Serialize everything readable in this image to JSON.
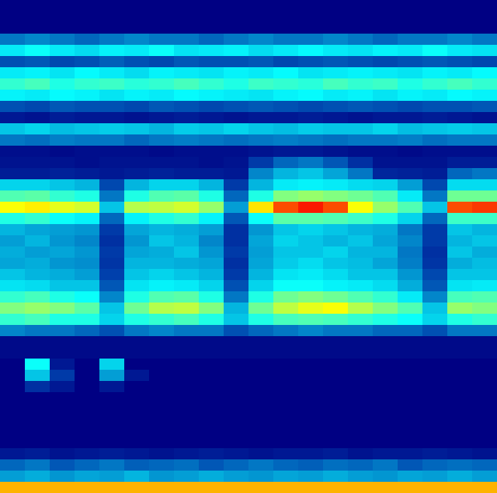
{
  "chart_data": {
    "type": "heatmap",
    "tick_labels": false,
    "zlim": [
      0,
      1
    ],
    "cells": [
      [
        0,
        0,
        0,
        0,
        0,
        0,
        0,
        0,
        0,
        0,
        0,
        0,
        0,
        0,
        0,
        0,
        0,
        0,
        0,
        0
      ],
      [
        0,
        0,
        0,
        0,
        0,
        0,
        0,
        0,
        0,
        0,
        0,
        0,
        0,
        0,
        0,
        0,
        0,
        0,
        0,
        0
      ],
      [
        0,
        0,
        0,
        0,
        0,
        0,
        0,
        0,
        0,
        0,
        0,
        0,
        0,
        0,
        0,
        0,
        0,
        0,
        0,
        0
      ],
      [
        0.2,
        0.22,
        0.2,
        0.18,
        0.2,
        0.22,
        0.2,
        0.2,
        0.18,
        0.2,
        0.22,
        0.2,
        0.2,
        0.22,
        0.2,
        0.18,
        0.2,
        0.2,
        0.22,
        0.2
      ],
      [
        0.35,
        0.38,
        0.35,
        0.33,
        0.36,
        0.35,
        0.38,
        0.34,
        0.35,
        0.36,
        0.33,
        0.35,
        0.37,
        0.35,
        0.34,
        0.36,
        0.35,
        0.38,
        0.35,
        0.34
      ],
      [
        0.15,
        0.16,
        0.14,
        0.15,
        0.17,
        0.15,
        0.14,
        0.16,
        0.15,
        0.15,
        0.16,
        0.14,
        0.15,
        0.16,
        0.15,
        0.14,
        0.15,
        0.16,
        0.15,
        0.14
      ],
      [
        0.35,
        0.36,
        0.34,
        0.37,
        0.35,
        0.33,
        0.36,
        0.35,
        0.34,
        0.36,
        0.35,
        0.37,
        0.34,
        0.35,
        0.36,
        0.35,
        0.34,
        0.36,
        0.35,
        0.37
      ],
      [
        0.42,
        0.44,
        0.4,
        0.42,
        0.43,
        0.41,
        0.42,
        0.44,
        0.42,
        0.4,
        0.43,
        0.42,
        0.41,
        0.44,
        0.42,
        0.43,
        0.4,
        0.42,
        0.44,
        0.42
      ],
      [
        0.36,
        0.35,
        0.37,
        0.36,
        0.34,
        0.36,
        0.35,
        0.37,
        0.36,
        0.35,
        0.34,
        0.36,
        0.37,
        0.35,
        0.36,
        0.34,
        0.36,
        0.35,
        0.37,
        0.36
      ],
      [
        0.15,
        0.14,
        0.16,
        0.15,
        0.15,
        0.14,
        0.16,
        0.15,
        0.14,
        0.15,
        0.16,
        0.15,
        0.14,
        0.15,
        0.16,
        0.15,
        0.14,
        0.15,
        0.15,
        0.16
      ],
      [
        0.05,
        0.04,
        0.06,
        0.05,
        0.05,
        0.04,
        0.05,
        0.06,
        0.05,
        0.04,
        0.05,
        0.05,
        0.06,
        0.05,
        0.04,
        0.05,
        0.05,
        0.06,
        0.05,
        0.04
      ],
      [
        0.3,
        0.32,
        0.29,
        0.3,
        0.31,
        0.3,
        0.28,
        0.31,
        0.3,
        0.32,
        0.3,
        0.29,
        0.31,
        0.3,
        0.3,
        0.32,
        0.29,
        0.3,
        0.31,
        0.3
      ],
      [
        0.2,
        0.19,
        0.21,
        0.2,
        0.2,
        0.18,
        0.2,
        0.21,
        0.2,
        0.19,
        0.2,
        0.21,
        0.2,
        0.19,
        0.2,
        0.2,
        0.21,
        0.19,
        0.2,
        0.2
      ],
      [
        0.03,
        0.03,
        0.02,
        0.03,
        0.03,
        0.03,
        0.02,
        0.03,
        0.03,
        0.03,
        0.04,
        0.05,
        0.05,
        0.04,
        0.03,
        0.03,
        0.02,
        0.03,
        0.03,
        0.03
      ],
      [
        0.04,
        0.04,
        0.04,
        0.03,
        0.04,
        0.04,
        0.04,
        0.04,
        0.03,
        0.04,
        0.12,
        0.18,
        0.2,
        0.16,
        0.1,
        0.04,
        0.04,
        0.04,
        0.06,
        0.06
      ],
      [
        0.06,
        0.06,
        0.07,
        0.06,
        0.05,
        0.06,
        0.07,
        0.06,
        0.06,
        0.05,
        0.22,
        0.28,
        0.3,
        0.26,
        0.2,
        0.08,
        0.07,
        0.06,
        0.18,
        0.2
      ],
      [
        0.32,
        0.32,
        0.3,
        0.28,
        0.14,
        0.28,
        0.32,
        0.32,
        0.28,
        0.12,
        0.28,
        0.35,
        0.36,
        0.35,
        0.33,
        0.32,
        0.25,
        0.14,
        0.33,
        0.33
      ],
      [
        0.45,
        0.46,
        0.42,
        0.4,
        0.2,
        0.4,
        0.45,
        0.46,
        0.4,
        0.18,
        0.4,
        0.5,
        0.52,
        0.5,
        0.48,
        0.45,
        0.35,
        0.2,
        0.48,
        0.48
      ],
      [
        0.62,
        0.64,
        0.6,
        0.58,
        0.3,
        0.55,
        0.56,
        0.58,
        0.52,
        0.25,
        0.65,
        0.8,
        0.85,
        0.8,
        0.62,
        0.52,
        0.45,
        0.3,
        0.8,
        0.82
      ],
      [
        0.4,
        0.42,
        0.38,
        0.36,
        0.18,
        0.36,
        0.4,
        0.42,
        0.36,
        0.16,
        0.38,
        0.46,
        0.46,
        0.45,
        0.43,
        0.4,
        0.32,
        0.18,
        0.43,
        0.43
      ],
      [
        0.28,
        0.26,
        0.25,
        0.24,
        0.12,
        0.26,
        0.28,
        0.27,
        0.25,
        0.1,
        0.24,
        0.3,
        0.32,
        0.3,
        0.28,
        0.27,
        0.2,
        0.12,
        0.3,
        0.28
      ],
      [
        0.25,
        0.28,
        0.24,
        0.22,
        0.1,
        0.24,
        0.3,
        0.28,
        0.22,
        0.1,
        0.26,
        0.32,
        0.3,
        0.28,
        0.3,
        0.26,
        0.22,
        0.12,
        0.28,
        0.3
      ],
      [
        0.27,
        0.25,
        0.26,
        0.24,
        0.12,
        0.26,
        0.27,
        0.3,
        0.24,
        0.12,
        0.25,
        0.3,
        0.3,
        0.32,
        0.28,
        0.28,
        0.2,
        0.1,
        0.3,
        0.27
      ],
      [
        0.26,
        0.27,
        0.24,
        0.23,
        0.11,
        0.28,
        0.28,
        0.27,
        0.26,
        0.1,
        0.26,
        0.31,
        0.33,
        0.3,
        0.29,
        0.26,
        0.21,
        0.11,
        0.27,
        0.29
      ],
      [
        0.3,
        0.28,
        0.27,
        0.25,
        0.13,
        0.3,
        0.32,
        0.3,
        0.28,
        0.12,
        0.28,
        0.34,
        0.35,
        0.33,
        0.3,
        0.3,
        0.24,
        0.14,
        0.3,
        0.3
      ],
      [
        0.34,
        0.33,
        0.3,
        0.3,
        0.16,
        0.34,
        0.36,
        0.35,
        0.32,
        0.15,
        0.32,
        0.38,
        0.38,
        0.36,
        0.35,
        0.33,
        0.27,
        0.16,
        0.34,
        0.35
      ],
      [
        0.42,
        0.44,
        0.4,
        0.38,
        0.22,
        0.4,
        0.45,
        0.46,
        0.4,
        0.2,
        0.4,
        0.48,
        0.5,
        0.48,
        0.45,
        0.42,
        0.35,
        0.22,
        0.44,
        0.45
      ],
      [
        0.5,
        0.52,
        0.5,
        0.46,
        0.3,
        0.48,
        0.55,
        0.56,
        0.5,
        0.28,
        0.48,
        0.56,
        0.6,
        0.62,
        0.55,
        0.5,
        0.45,
        0.3,
        0.52,
        0.5
      ],
      [
        0.42,
        0.44,
        0.4,
        0.4,
        0.32,
        0.4,
        0.42,
        0.44,
        0.4,
        0.3,
        0.4,
        0.44,
        0.45,
        0.44,
        0.42,
        0.4,
        0.38,
        0.32,
        0.4,
        0.42
      ],
      [
        0.22,
        0.2,
        0.2,
        0.18,
        0.15,
        0.2,
        0.22,
        0.2,
        0.2,
        0.15,
        0.18,
        0.2,
        0.22,
        0.2,
        0.2,
        0.18,
        0.18,
        0.15,
        0.2,
        0.2
      ],
      [
        0.02,
        0.02,
        0.02,
        0.02,
        0.02,
        0.02,
        0.02,
        0.02,
        0.02,
        0.02,
        0.02,
        0.02,
        0.02,
        0.02,
        0.02,
        0.02,
        0.02,
        0.02,
        0.02,
        0.02
      ],
      [
        0.02,
        0.02,
        0.02,
        0.02,
        0.02,
        0.02,
        0.02,
        0.02,
        0.02,
        0.02,
        0.02,
        0.02,
        0.02,
        0.02,
        0.02,
        0.02,
        0.02,
        0.02,
        0.02,
        0.02
      ],
      [
        0,
        0.38,
        0.05,
        0,
        0.32,
        0,
        0,
        0,
        0,
        0,
        0,
        0,
        0,
        0,
        0,
        0,
        0,
        0,
        0,
        0
      ],
      [
        0,
        0.3,
        0.12,
        0,
        0.25,
        0.05,
        0,
        0,
        0,
        0,
        0,
        0,
        0,
        0,
        0,
        0,
        0,
        0,
        0,
        0
      ],
      [
        0,
        0.1,
        0.05,
        0,
        0.05,
        0,
        0,
        0,
        0,
        0,
        0,
        0,
        0,
        0,
        0,
        0,
        0,
        0,
        0,
        0
      ],
      [
        0,
        0,
        0,
        0,
        0,
        0,
        0,
        0,
        0,
        0,
        0,
        0,
        0,
        0,
        0,
        0,
        0,
        0,
        0,
        0
      ],
      [
        0,
        0,
        0,
        0,
        0,
        0,
        0,
        0,
        0,
        0,
        0,
        0,
        0,
        0,
        0,
        0,
        0,
        0,
        0,
        0
      ],
      [
        0,
        0,
        0,
        0,
        0,
        0,
        0,
        0,
        0,
        0,
        0,
        0,
        0,
        0,
        0,
        0,
        0,
        0,
        0,
        0
      ],
      [
        0,
        0,
        0,
        0,
        0,
        0,
        0,
        0,
        0,
        0,
        0,
        0,
        0,
        0,
        0,
        0,
        0,
        0,
        0,
        0
      ],
      [
        0,
        0,
        0,
        0,
        0,
        0,
        0,
        0,
        0,
        0,
        0,
        0,
        0,
        0,
        0,
        0,
        0,
        0,
        0,
        0
      ],
      [
        0.05,
        0.06,
        0.04,
        0.05,
        0.06,
        0.05,
        0.04,
        0.05,
        0.06,
        0.05,
        0.04,
        0.05,
        0.05,
        0.06,
        0.04,
        0.05,
        0.05,
        0.06,
        0.05,
        0.04
      ],
      [
        0.18,
        0.2,
        0.16,
        0.18,
        0.2,
        0.17,
        0.18,
        0.19,
        0.16,
        0.18,
        0.2,
        0.18,
        0.17,
        0.19,
        0.18,
        0.2,
        0.16,
        0.18,
        0.19,
        0.18
      ],
      [
        0.25,
        0.27,
        0.24,
        0.26,
        0.25,
        0.28,
        0.24,
        0.25,
        0.27,
        0.25,
        0.24,
        0.26,
        0.25,
        0.27,
        0.25,
        0.24,
        0.26,
        0.25,
        0.27,
        0.25
      ],
      [
        0.7,
        0.7,
        0.7,
        0.7,
        0.7,
        0.7,
        0.7,
        0.7,
        0.7,
        0.7,
        0.7,
        0.7,
        0.7,
        0.7,
        0.7,
        0.7,
        0.7,
        0.7,
        0.7,
        0.7
      ]
    ]
  }
}
